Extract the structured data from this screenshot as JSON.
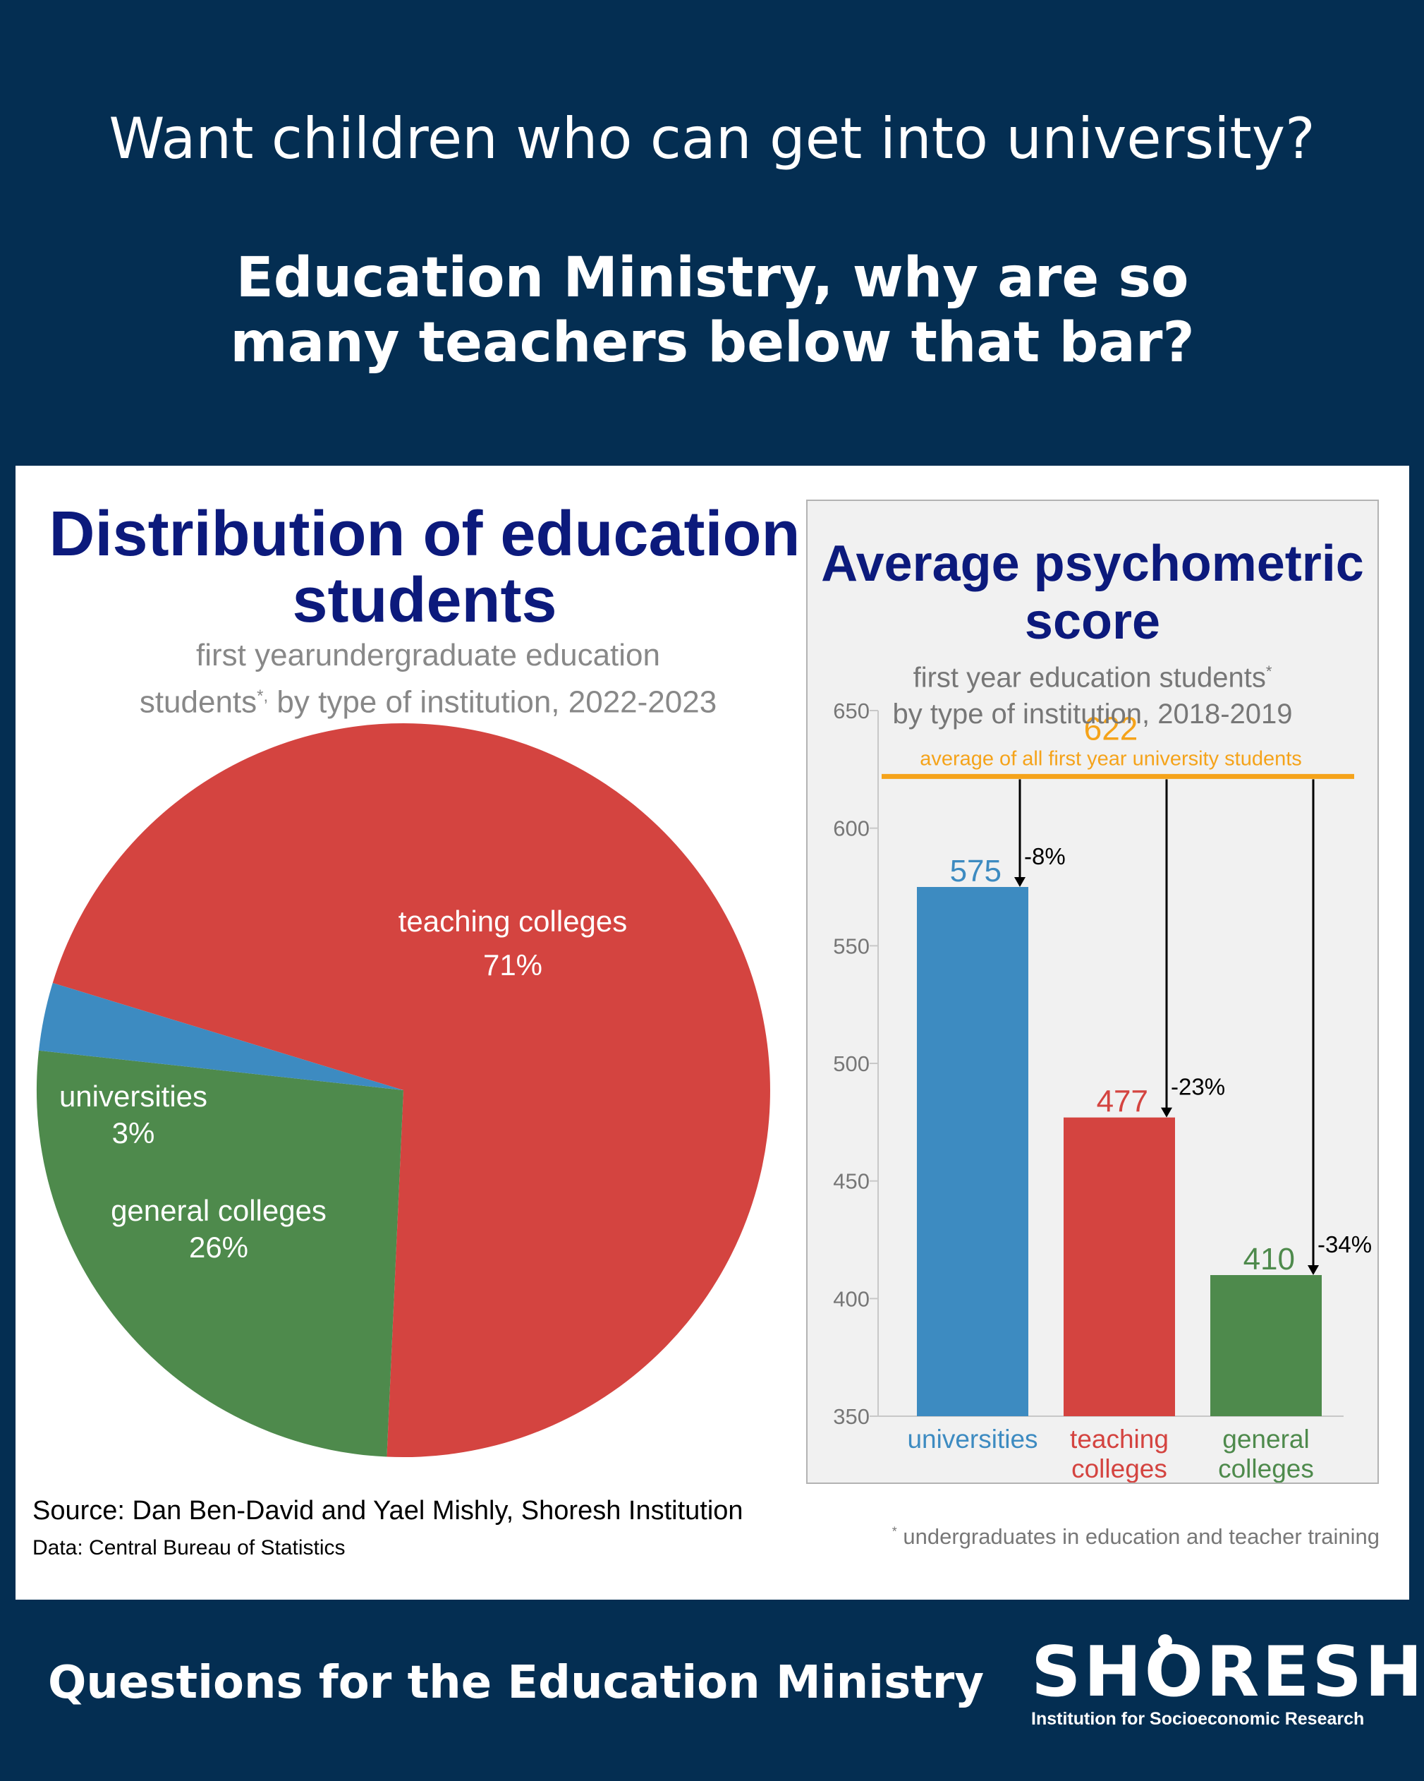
{
  "header": {
    "question": "Want children who can get into university?",
    "challenge": "Education Ministry, why are so many teachers below that bar?"
  },
  "chart_data": [
    {
      "type": "pie",
      "title": "Distribution of education students",
      "subtitle_part1": "first yearundergraduate education",
      "subtitle_part2": "students",
      "subtitle_marker": "*,",
      "subtitle_part3": " by type of institution, 2022-2023",
      "slices": [
        {
          "label": "teaching colleges",
          "value": 71,
          "display": "71%",
          "color": "#d44440"
        },
        {
          "label": "general colleges",
          "value": 26,
          "display": "26%",
          "color": "#4e8a4c"
        },
        {
          "label": "universities",
          "value": 3,
          "display": "3%",
          "color": "#3d8bc1"
        }
      ]
    },
    {
      "type": "bar",
      "title": "Average psychometric score",
      "subtitle_line1": "first year education students",
      "subtitle_marker": "*",
      "subtitle_line2": "by type of institution, 2018-2019",
      "categories": [
        "universities",
        "teaching colleges",
        "general colleges"
      ],
      "category_lines": [
        [
          "universities"
        ],
        [
          "teaching",
          "colleges"
        ],
        [
          "general",
          "colleges"
        ]
      ],
      "values": [
        575,
        477,
        410
      ],
      "diffs": [
        "-8%",
        "-23%",
        "-34%"
      ],
      "colors": [
        "#3d8bc1",
        "#d44440",
        "#4e8a4c"
      ],
      "ylim": [
        350,
        650
      ],
      "yticks": [
        350,
        400,
        450,
        500,
        550,
        600,
        650
      ],
      "reference": {
        "value": 622,
        "label": "average of all first year university students",
        "color": "#f5a31a"
      }
    }
  ],
  "notes": {
    "source": "Source: Dan Ben-David and Yael Mishly, Shoresh Institution",
    "data": "Data: Central Bureau of Statistics",
    "footnote_marker": "*",
    "footnote": " undergraduates in education and teacher training"
  },
  "footer": {
    "title": "Questions for the Education Ministry",
    "logo_word": "SHORESH",
    "logo_tagline": "Institution for Socioeconomic Research"
  }
}
